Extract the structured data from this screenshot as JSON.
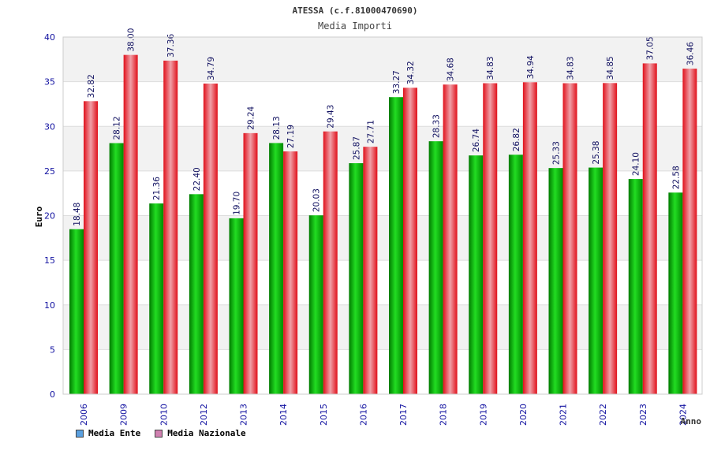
{
  "chart_data": {
    "type": "bar",
    "title": "ATESSA (c.f.81000470690)",
    "subtitle": "Media Importi",
    "xlabel": "Anno",
    "ylabel": "Euro",
    "ylim": [
      0,
      40
    ],
    "yticks": [
      "0",
      "5",
      "10",
      "15",
      "20",
      "25",
      "30",
      "35",
      "40"
    ],
    "categories": [
      "2006",
      "2009",
      "2010",
      "2012",
      "2013",
      "2014",
      "2015",
      "2016",
      "2017",
      "2018",
      "2019",
      "2020",
      "2021",
      "2022",
      "2023",
      "2024"
    ],
    "series": [
      {
        "name": "Media Ente",
        "color": "#00b000",
        "values": [
          18.48,
          28.12,
          21.36,
          22.4,
          19.7,
          28.13,
          20.03,
          25.87,
          33.27,
          28.33,
          26.74,
          26.82,
          25.33,
          25.38,
          24.1,
          22.58
        ],
        "labels": [
          "18.48",
          "28.12",
          "21.36",
          "22.40",
          "19.70",
          "28.13",
          "20.03",
          "25.87",
          "33.27",
          "28.33",
          "26.74",
          "26.82",
          "25.33",
          "25.38",
          "24.10",
          "22.58"
        ]
      },
      {
        "name": "Media Nazionale",
        "color": "#e8101a",
        "values": [
          32.82,
          38.0,
          37.36,
          34.79,
          29.24,
          27.19,
          29.43,
          27.71,
          34.32,
          34.68,
          34.83,
          34.94,
          34.83,
          34.85,
          37.05,
          36.46
        ],
        "labels": [
          "32.82",
          "38.00",
          "37.36",
          "34.79",
          "29.24",
          "27.19",
          "29.43",
          "27.71",
          "34.32",
          "34.68",
          "34.83",
          "34.94",
          "34.83",
          "34.85",
          "37.05",
          "36.46"
        ]
      }
    ]
  },
  "legend": {
    "ente_label": "Media Ente",
    "ente_swatch": "#5aa0e0",
    "nazionale_label": "Media Nazionale",
    "nazionale_swatch": "#d080b0"
  }
}
